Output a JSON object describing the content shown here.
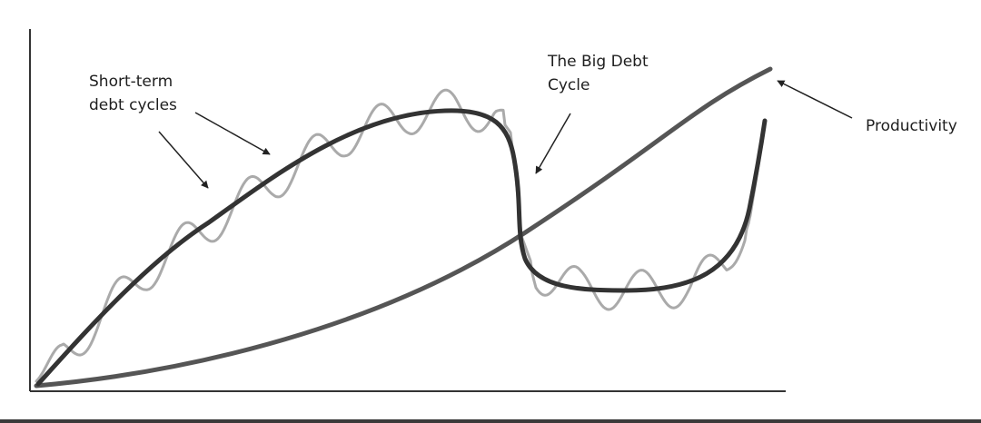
{
  "labels": {
    "short_term_line1": "Short-term",
    "short_term_line2": "debt cycles",
    "big_debt_line1": "The Big Debt",
    "big_debt_line2": "Cycle",
    "productivity": "Productivity"
  },
  "colors": {
    "big_debt_curve": "#333333",
    "short_term_curve": "#aaaaaa",
    "productivity_curve": "#555555",
    "axis": "#333333",
    "arrow": "#222222",
    "text": "#1f1f1f"
  }
}
